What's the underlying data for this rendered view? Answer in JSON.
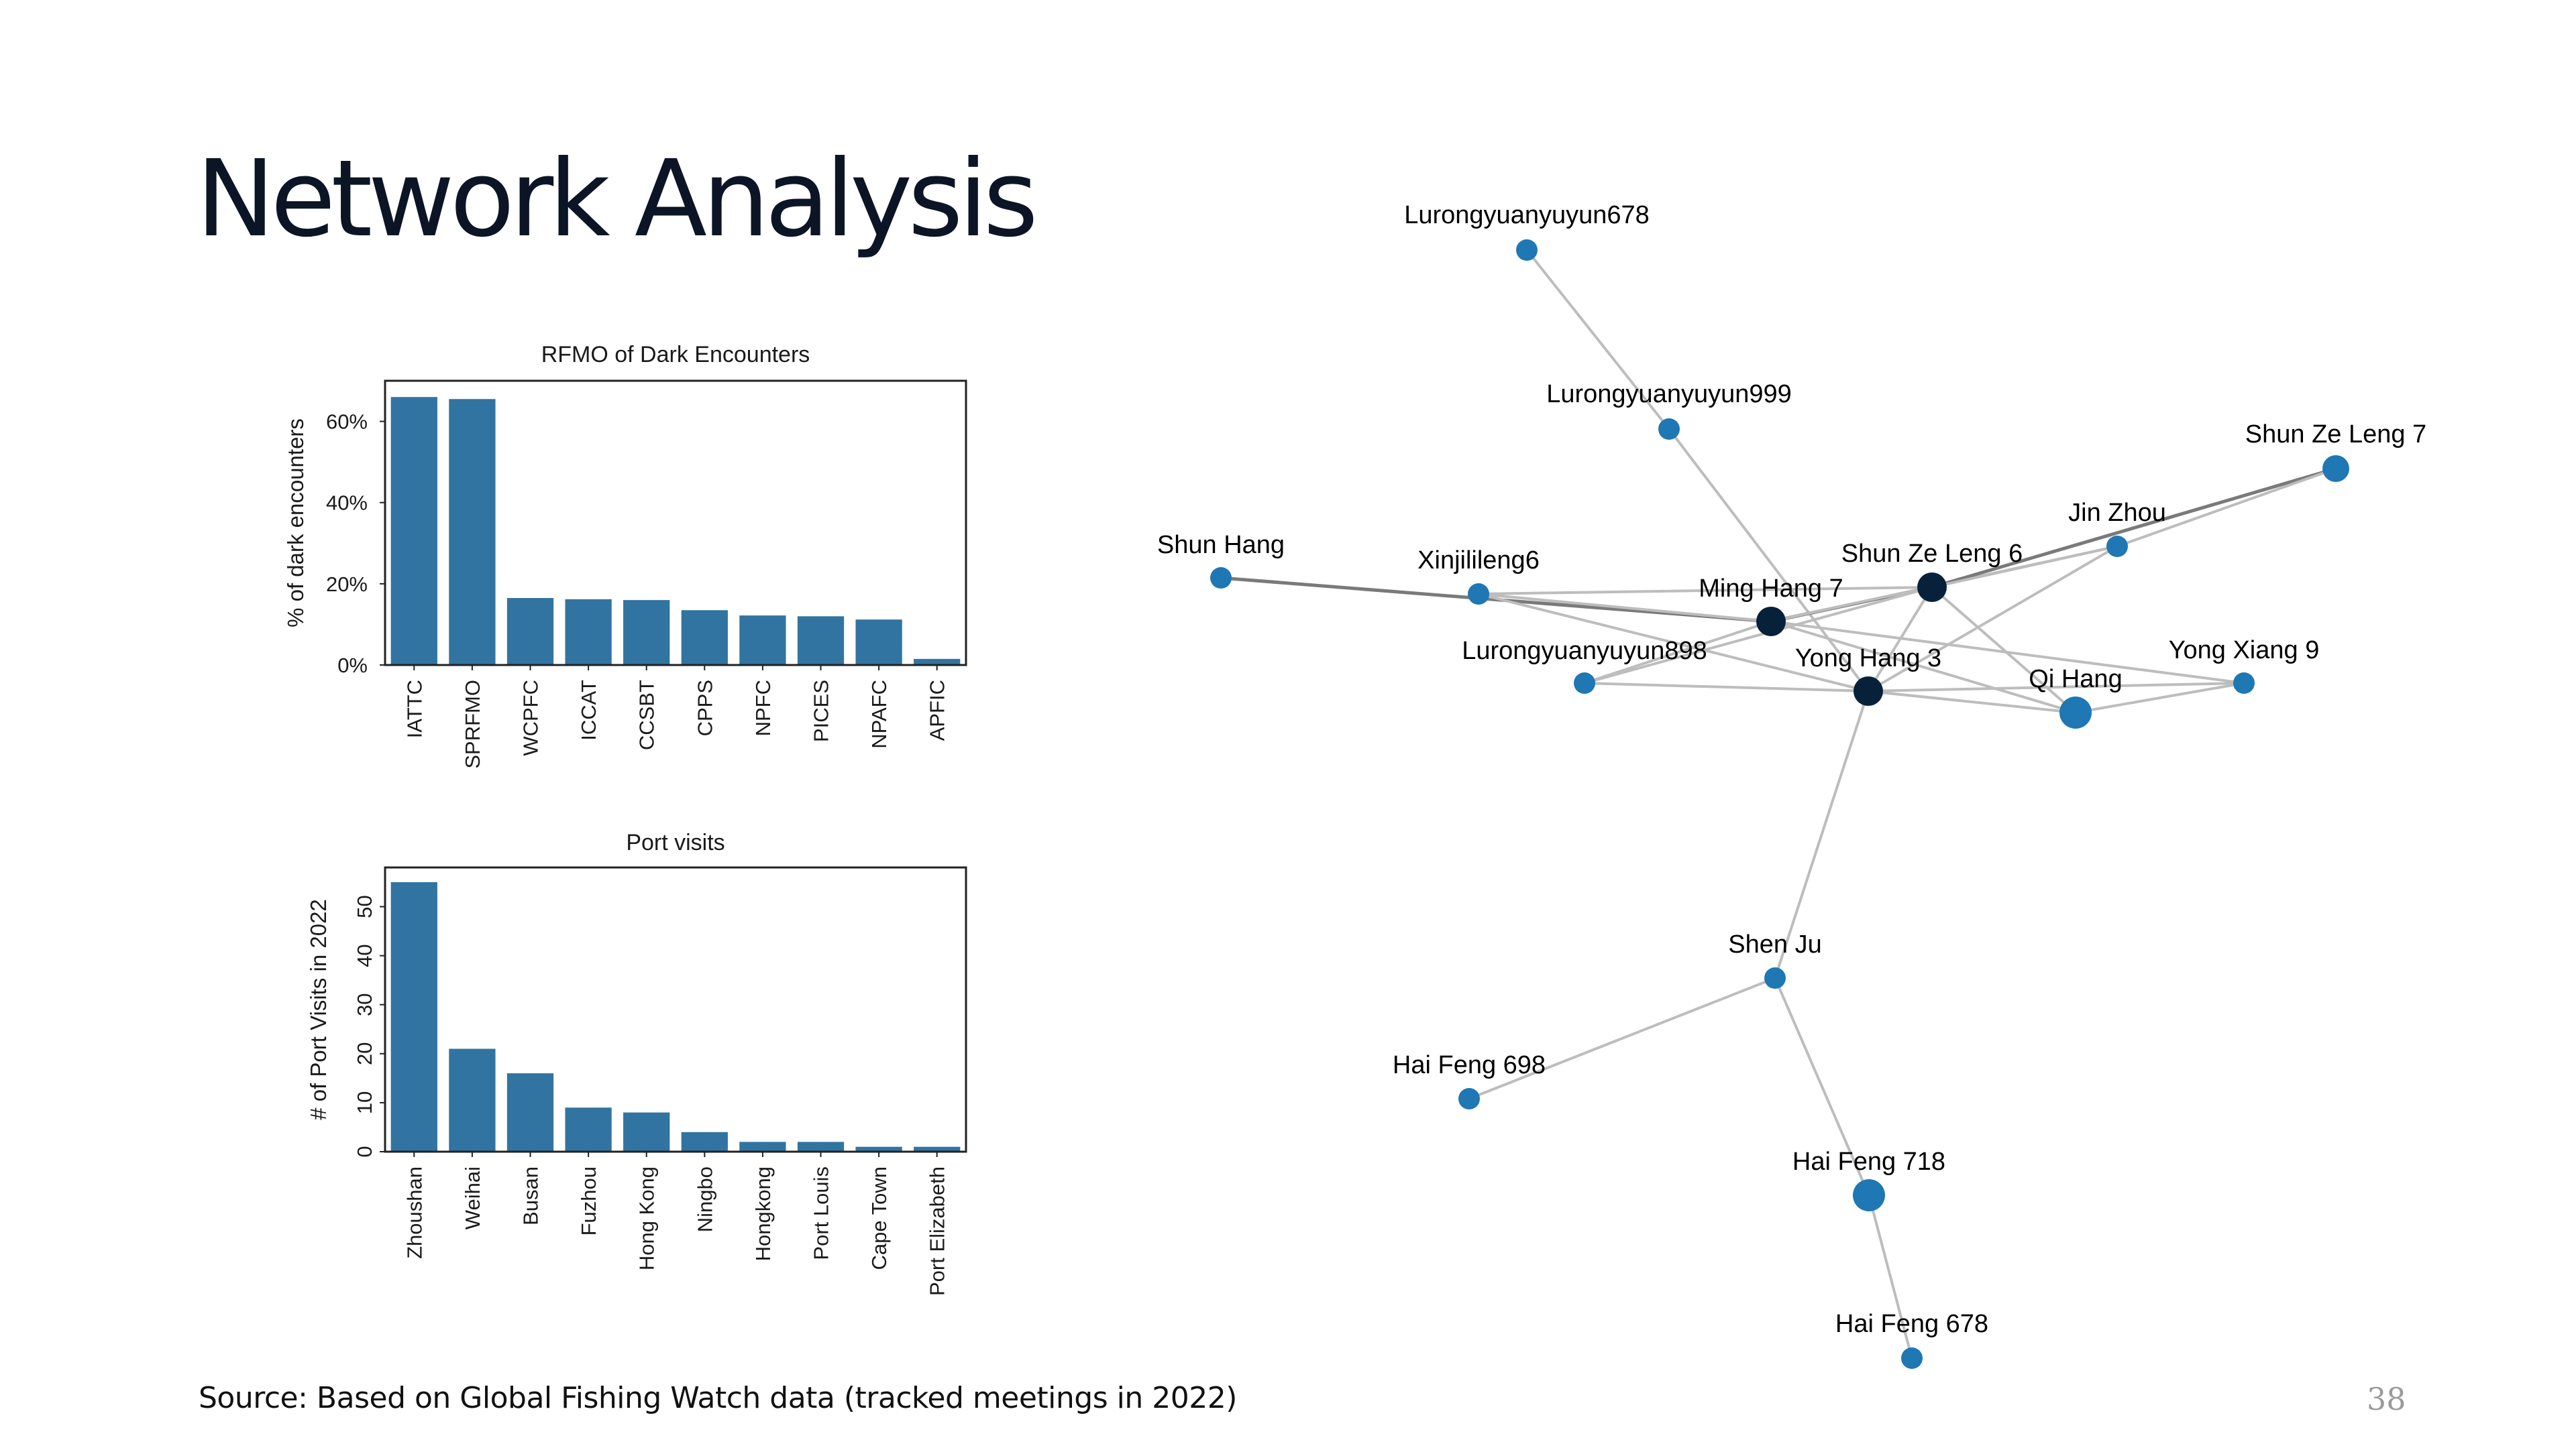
{
  "slide": {
    "title": "Network Analysis",
    "source": "Source: Based on Global Fishing Watch data (tracked meetings in 2022)",
    "page_number": "38"
  },
  "colors": {
    "bar": "#3274a1",
    "node_default": "#1f77b4",
    "node_hub": "#08213b",
    "edge": "#bdbdbd",
    "edge_strong": "#7a7a7a",
    "title": "#0b1526"
  },
  "chart_data": [
    {
      "type": "bar",
      "title": "RFMO of Dark Encounters",
      "xlabel": "",
      "ylabel": "% of dark encounters",
      "categories": [
        "IATTC",
        "SPRFMO",
        "WCPFC",
        "ICCAT",
        "CCSBT",
        "CPPS",
        "NPFC",
        "PICES",
        "NPAFC",
        "APFIC"
      ],
      "values": [
        66,
        65.5,
        16.5,
        16.2,
        16,
        13.5,
        12.2,
        12,
        11.2,
        1.5
      ],
      "ylim": [
        0,
        70
      ],
      "yticks": [
        0,
        20,
        40,
        60
      ],
      "ytick_labels": [
        "0%",
        "20%",
        "40%",
        "60%"
      ],
      "grid": false
    },
    {
      "type": "bar",
      "title": "Port visits",
      "xlabel": "",
      "ylabel": "# of Port Visits in 2022",
      "categories": [
        "Zhoushan",
        "Weihai",
        "Busan",
        "Fuzhou",
        "Hong Kong",
        "Ningbo",
        "Hongkong",
        "Port Louis",
        "Cape Town",
        "Port Elizabeth"
      ],
      "values": [
        55,
        21,
        16,
        9,
        8,
        4,
        2,
        2,
        1,
        1
      ],
      "ylim": [
        0,
        58
      ],
      "yticks": [
        0,
        10,
        20,
        30,
        40,
        50
      ],
      "ytick_labels": [
        "0",
        "10",
        "20",
        "30",
        "40",
        "50"
      ],
      "grid": false
    }
  ],
  "network": {
    "nodes": [
      {
        "id": "lurong678",
        "label": "Lurongyuanyuyun678",
        "size": "small",
        "hub": false
      },
      {
        "id": "lurong999",
        "label": "Lurongyuanyuyun999",
        "size": "small",
        "hub": false
      },
      {
        "id": "shunzeleng7",
        "label": "Shun Ze Leng 7",
        "size": "medium",
        "hub": false
      },
      {
        "id": "jinzhou",
        "label": "Jin Zhou",
        "size": "small",
        "hub": false
      },
      {
        "id": "shunhang",
        "label": "Shun Hang",
        "size": "small",
        "hub": false
      },
      {
        "id": "xinjilileng6",
        "label": "Xinjilileng6",
        "size": "small",
        "hub": false
      },
      {
        "id": "shunzeleng6",
        "label": "Shun Ze Leng 6",
        "size": "hub",
        "hub": true
      },
      {
        "id": "minghang7",
        "label": "Ming Hang 7",
        "size": "hub",
        "hub": true
      },
      {
        "id": "lurong898",
        "label": "Lurongyuanyuyun898",
        "size": "small",
        "hub": false
      },
      {
        "id": "yonghang3",
        "label": "Yong Hang 3",
        "size": "hub",
        "hub": true
      },
      {
        "id": "yongxiang9",
        "label": "Yong Xiang 9",
        "size": "small",
        "hub": false
      },
      {
        "id": "qihang",
        "label": "Qi Hang",
        "size": "large",
        "hub": false
      },
      {
        "id": "shenju",
        "label": "Shen  Ju",
        "size": "small",
        "hub": false
      },
      {
        "id": "haifeng698",
        "label": "Hai Feng 698",
        "size": "small",
        "hub": false
      },
      {
        "id": "haifeng718",
        "label": "Hai Feng 718",
        "size": "large",
        "hub": false
      },
      {
        "id": "haifeng678",
        "label": "Hai Feng 678",
        "size": "small",
        "hub": false
      }
    ],
    "edges": [
      [
        "lurong678",
        "lurong999",
        "normal"
      ],
      [
        "lurong999",
        "yonghang3",
        "normal"
      ],
      [
        "shunhang",
        "minghang7",
        "strong"
      ],
      [
        "xinjilileng6",
        "shunzeleng6",
        "normal"
      ],
      [
        "xinjilileng6",
        "minghang7",
        "normal"
      ],
      [
        "xinjilileng6",
        "yonghang3",
        "normal"
      ],
      [
        "minghang7",
        "shunzeleng6",
        "strong"
      ],
      [
        "minghang7",
        "yongxiang9",
        "normal"
      ],
      [
        "minghang7",
        "qihang",
        "normal"
      ],
      [
        "minghang7",
        "jinzhou",
        "normal"
      ],
      [
        "minghang7",
        "lurong898",
        "normal"
      ],
      [
        "shunzeleng6",
        "shunzeleng7",
        "strong"
      ],
      [
        "shunzeleng6",
        "jinzhou",
        "normal"
      ],
      [
        "shunzeleng6",
        "yonghang3",
        "normal"
      ],
      [
        "shunzeleng6",
        "qihang",
        "normal"
      ],
      [
        "shunzeleng6",
        "lurong898",
        "normal"
      ],
      [
        "jinzhou",
        "shunzeleng7",
        "normal"
      ],
      [
        "jinzhou",
        "yonghang3",
        "normal"
      ],
      [
        "yonghang3",
        "lurong898",
        "normal"
      ],
      [
        "yonghang3",
        "qihang",
        "normal"
      ],
      [
        "yonghang3",
        "yongxiang9",
        "normal"
      ],
      [
        "yonghang3",
        "shenju",
        "normal"
      ],
      [
        "qihang",
        "yongxiang9",
        "normal"
      ],
      [
        "shenju",
        "haifeng698",
        "normal"
      ],
      [
        "shenju",
        "haifeng718",
        "normal"
      ],
      [
        "haifeng718",
        "haifeng678",
        "normal"
      ]
    ]
  }
}
